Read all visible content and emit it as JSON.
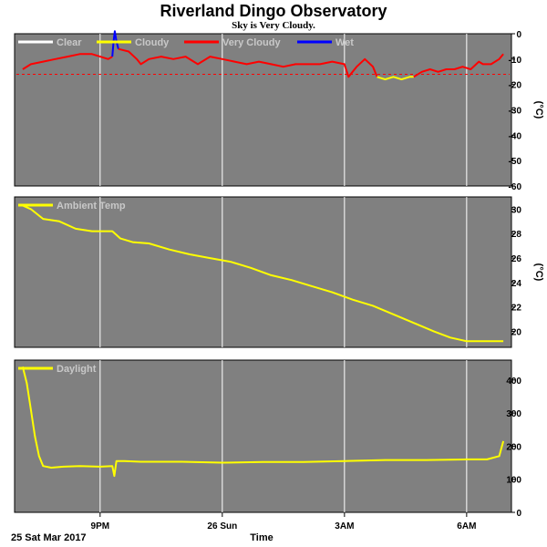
{
  "title": "Riverland Dingo Observatory",
  "subtitle": "Sky is Very Cloudy.",
  "x_axis": {
    "label": "Time",
    "date_label": "25 Sat Mar 2017",
    "ticks": [
      {
        "label": "9PM",
        "t": 21.0
      },
      {
        "label": "26 Sun",
        "t": 24.0
      },
      {
        "label": "3AM",
        "t": 27.0
      },
      {
        "label": "6AM",
        "t": 30.0
      }
    ],
    "range": [
      18.9,
      31.1
    ]
  },
  "colors": {
    "panel_bg": "#808080",
    "grid": "#ffffff",
    "clear": "#ffffff",
    "cloudy": "#ffff00",
    "very_cloudy": "#ff0000",
    "wet": "#0000ff",
    "threshold": "#ff0000",
    "ambient": "#ffff00",
    "daylight": "#ffff00"
  },
  "chart_data": [
    {
      "type": "line",
      "name": "sky",
      "ylim": [
        -60,
        0
      ],
      "yticks": [
        0,
        -10,
        -20,
        -30,
        -40,
        -50,
        -60
      ],
      "unit": "(°C)",
      "legend": [
        {
          "label": "Clear",
          "color": "#ffffff"
        },
        {
          "label": "Cloudy",
          "color": "#ffff00"
        },
        {
          "label": "Very Cloudy",
          "color": "#ff0000"
        },
        {
          "label": "Wet",
          "color": "#0000ff"
        }
      ],
      "threshold": -16,
      "series": [
        {
          "status": "Very Cloudy",
          "color": "#ff0000",
          "x": [
            19.1,
            19.3,
            19.6,
            19.9,
            20.2,
            20.5,
            20.8,
            21.0,
            21.2,
            21.3
          ],
          "y": [
            -14,
            -12,
            -11,
            -10,
            -9,
            -8,
            -8,
            -9,
            -10,
            -9
          ]
        },
        {
          "status": "Wet",
          "color": "#0000ff",
          "x": [
            21.3,
            21.33,
            21.36,
            21.4,
            21.45
          ],
          "y": [
            -9,
            -3,
            1,
            -3,
            -6
          ]
        },
        {
          "status": "Very Cloudy",
          "color": "#ff0000",
          "x": [
            21.45,
            21.7,
            21.9,
            22.0,
            22.2,
            22.5,
            22.8,
            23.1,
            23.4,
            23.7,
            24.0,
            24.3,
            24.6,
            24.9,
            25.2,
            25.5,
            25.8,
            26.1,
            26.4,
            26.7,
            27.0,
            27.1,
            27.3,
            27.5,
            27.7,
            27.8
          ],
          "y": [
            -6,
            -7,
            -10,
            -12,
            -10,
            -9,
            -10,
            -9,
            -12,
            -9,
            -10,
            -11,
            -12,
            -11,
            -12,
            -13,
            -12,
            -12,
            -12,
            -11,
            -12,
            -17,
            -13,
            -10,
            -13,
            -17
          ]
        },
        {
          "status": "Cloudy",
          "color": "#ffff00",
          "x": [
            27.8,
            28.0,
            28.2,
            28.4,
            28.6,
            28.7
          ],
          "y": [
            -17,
            -18,
            -17,
            -18,
            -17,
            -17
          ]
        },
        {
          "status": "Very Cloudy",
          "color": "#ff0000",
          "x": [
            28.7,
            28.9,
            29.1,
            29.3,
            29.5,
            29.7,
            29.9,
            30.1,
            30.3,
            30.4,
            30.6,
            30.8,
            30.9
          ],
          "y": [
            -17,
            -15,
            -14,
            -15,
            -14,
            -14,
            -13,
            -14,
            -11,
            -12,
            -12,
            -10,
            -8
          ]
        }
      ]
    },
    {
      "type": "line",
      "name": "ambient",
      "ylim": [
        18.7,
        31.0
      ],
      "yticks": [
        20,
        22,
        24,
        26,
        28,
        30
      ],
      "unit": "(°C)",
      "legend": [
        {
          "label": "Ambient Temp",
          "color": "#ffff00"
        }
      ],
      "series": [
        {
          "name": "Ambient Temp",
          "color": "#ffff00",
          "x": [
            19.1,
            19.3,
            19.6,
            20.0,
            20.4,
            20.8,
            21.3,
            21.5,
            21.8,
            22.2,
            22.7,
            23.2,
            23.7,
            24.2,
            24.7,
            25.2,
            25.7,
            26.2,
            26.7,
            27.2,
            27.7,
            28.2,
            28.7,
            29.2,
            29.6,
            30.0,
            30.5,
            30.9
          ],
          "y": [
            30.3,
            30.0,
            29.2,
            29.0,
            28.4,
            28.2,
            28.2,
            27.6,
            27.3,
            27.2,
            26.7,
            26.3,
            26.0,
            25.7,
            25.2,
            24.6,
            24.2,
            23.7,
            23.2,
            22.6,
            22.1,
            21.4,
            20.7,
            20.0,
            19.5,
            19.2,
            19.2,
            19.2
          ]
        }
      ]
    },
    {
      "type": "line",
      "name": "daylight",
      "ylim": [
        0,
        460
      ],
      "yticks": [
        0,
        100,
        200,
        300,
        400
      ],
      "unit": "",
      "legend": [
        {
          "label": "Daylight",
          "color": "#ffff00"
        }
      ],
      "series": [
        {
          "name": "Daylight",
          "color": "#ffff00",
          "x": [
            19.1,
            19.2,
            19.3,
            19.4,
            19.5,
            19.6,
            19.8,
            20.1,
            20.5,
            21.0,
            21.3,
            21.35,
            21.4,
            21.6,
            22.0,
            23.0,
            24.0,
            25.0,
            26.0,
            27.0,
            28.0,
            29.0,
            30.0,
            30.5,
            30.8,
            30.9
          ],
          "y": [
            440,
            390,
            310,
            230,
            170,
            140,
            135,
            138,
            140,
            138,
            140,
            110,
            155,
            155,
            153,
            153,
            150,
            152,
            152,
            155,
            158,
            158,
            160,
            160,
            170,
            215
          ]
        }
      ]
    }
  ]
}
